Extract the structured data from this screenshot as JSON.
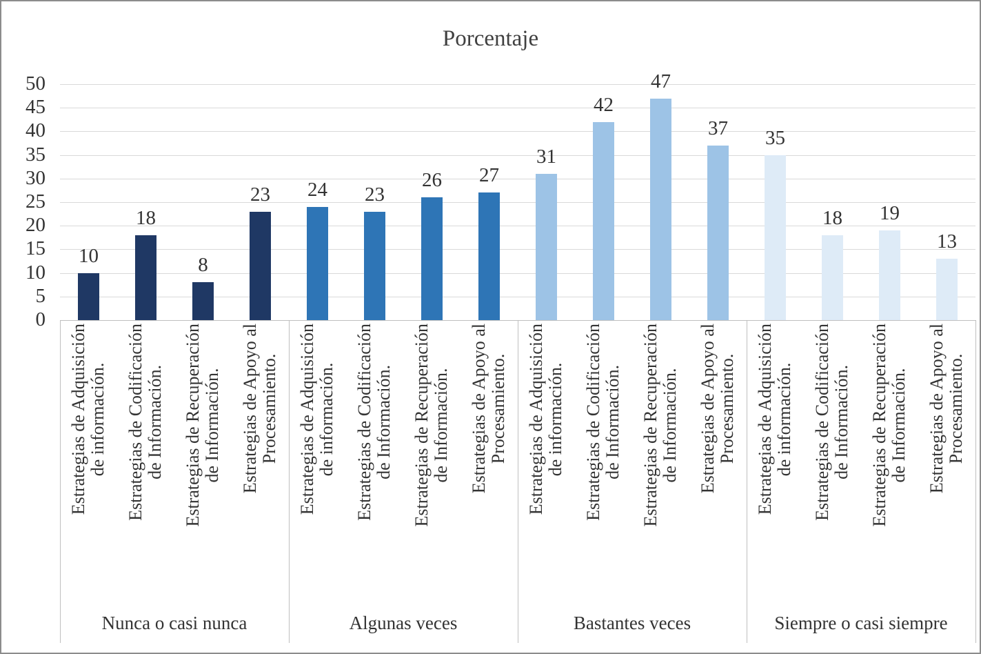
{
  "chart_data": {
    "type": "bar",
    "title": "Porcentaje",
    "xlabel": "",
    "ylabel": "",
    "ylim": [
      0,
      50
    ],
    "yticks": [
      0,
      5,
      10,
      15,
      20,
      25,
      30,
      35,
      40,
      45,
      50
    ],
    "grid": true,
    "legend": "none",
    "categories": [
      "Estrategias de Adquisición\nde información.",
      "Estrategias de Codificación\nde Información.",
      "Estrategias de Recuperación\nde Información.",
      "Estrategias de Apoyo al\nProcesamiento."
    ],
    "groups": [
      {
        "label": "Nunca o casi nunca",
        "color": "#1F3864",
        "values": [
          10,
          18,
          8,
          23
        ]
      },
      {
        "label": "Algunas veces",
        "color": "#2E75B6",
        "values": [
          24,
          23,
          26,
          27
        ]
      },
      {
        "label": "Bastantes veces",
        "color": "#9DC3E6",
        "values": [
          31,
          42,
          47,
          37
        ]
      },
      {
        "label": "Siempre o casi siempre",
        "color": "#DEEBF7",
        "values": [
          35,
          18,
          19,
          13
        ]
      }
    ]
  }
}
